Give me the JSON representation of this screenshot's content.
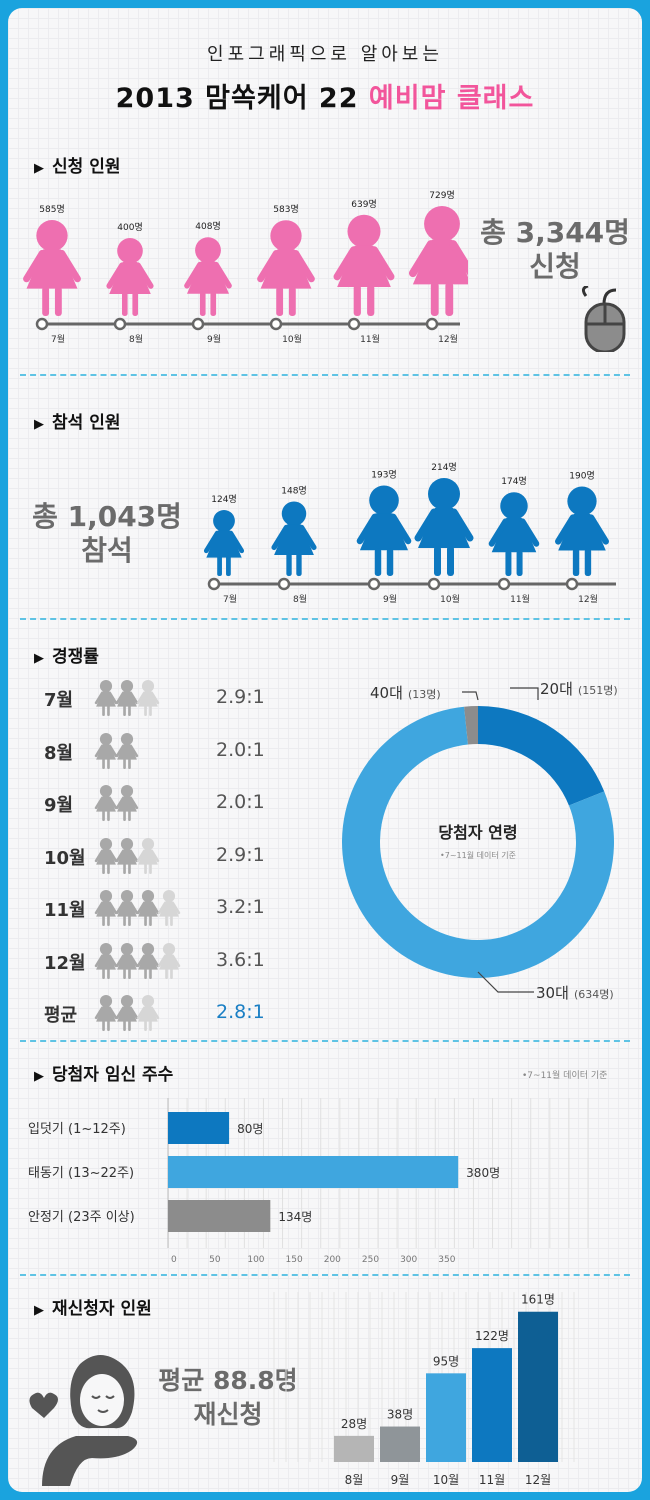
{
  "header": {
    "subtitle": "인포그래픽으로 알아보는",
    "title_main": "2013 맘쏙케어 22",
    "title_accent": "예비맘 클래스"
  },
  "applicants": {
    "title": "신청 인원",
    "total": "총 3,344명",
    "total_suffix": "신청",
    "color": "#ee6fb0",
    "months": [
      "7월",
      "8월",
      "9월",
      "10월",
      "11월",
      "12월"
    ],
    "values": [
      585,
      400,
      408,
      583,
      639,
      729
    ],
    "value_labels": [
      "585명",
      "400명",
      "408명",
      "583명",
      "639명",
      "729명"
    ]
  },
  "attendees": {
    "title": "참석 인원",
    "total": "총 1,043명",
    "total_suffix": "참석",
    "color": "#0d78c0",
    "months": [
      "7월",
      "8월",
      "9월",
      "10월",
      "11월",
      "12월"
    ],
    "values": [
      124,
      148,
      193,
      214,
      174,
      190
    ],
    "value_labels": [
      "124명",
      "148명",
      "193명",
      "214명",
      "174명",
      "190명"
    ]
  },
  "competition": {
    "title": "경쟁률",
    "rows": [
      {
        "label": "7월",
        "ratio": "2.9:1",
        "value": 2.9
      },
      {
        "label": "8월",
        "ratio": "2.0:1",
        "value": 2.0
      },
      {
        "label": "9월",
        "ratio": "2.0:1",
        "value": 2.0
      },
      {
        "label": "10월",
        "ratio": "2.9:1",
        "value": 2.9
      },
      {
        "label": "11월",
        "ratio": "3.2:1",
        "value": 3.2
      },
      {
        "label": "12월",
        "ratio": "3.6:1",
        "value": 3.6
      },
      {
        "label": "평균",
        "ratio": "2.8:1",
        "value": 2.8
      }
    ],
    "average_color": "#1a7fc4"
  },
  "age_donut": {
    "center_title": "당첨자 연령",
    "center_note": "•7~11월 데이터 기준",
    "labels": [
      {
        "name": "20대",
        "count": "(151명)"
      },
      {
        "name": "30대",
        "count": "(634명)"
      },
      {
        "name": "40대",
        "count": "(13명)"
      }
    ]
  },
  "pregnancy": {
    "title": "당첨자 임신 주수",
    "note": "•7~11월 데이터 기준",
    "categories": [
      "입덧기 (1~12주)",
      "태동기 (13~22주)",
      "안정기 (23주 이상)"
    ],
    "value_labels": [
      "80명",
      "380명",
      "134명"
    ],
    "axis_ticks": [
      "0",
      "50",
      "100",
      "150",
      "200",
      "250",
      "300",
      "350"
    ]
  },
  "reapply": {
    "title": "재신청자 인원",
    "average": "평균 88.8명",
    "average_suffix": "재신청",
    "months": [
      "8월",
      "9월",
      "10월",
      "11월",
      "12월"
    ],
    "value_labels": [
      "28명",
      "38명",
      "95명",
      "122명",
      "161명"
    ]
  },
  "chart_data": [
    {
      "type": "bar",
      "title": "신청 인원",
      "categories": [
        "7월",
        "8월",
        "9월",
        "10월",
        "11월",
        "12월"
      ],
      "values": [
        585,
        400,
        408,
        583,
        639,
        729
      ]
    },
    {
      "type": "bar",
      "title": "참석 인원",
      "categories": [
        "7월",
        "8월",
        "9월",
        "10월",
        "11월",
        "12월"
      ],
      "values": [
        124,
        148,
        193,
        214,
        174,
        190
      ]
    },
    {
      "type": "table",
      "title": "경쟁률",
      "categories": [
        "7월",
        "8월",
        "9월",
        "10월",
        "11월",
        "12월",
        "평균"
      ],
      "values": [
        2.9,
        2.0,
        2.0,
        2.9,
        3.2,
        3.6,
        2.8
      ]
    },
    {
      "type": "pie",
      "title": "당첨자 연령",
      "categories": [
        "20대",
        "30대",
        "40대"
      ],
      "values": [
        151,
        634,
        13
      ],
      "colors": [
        "#0d78c0",
        "#3fa6df",
        "#8c8c8c"
      ]
    },
    {
      "type": "bar",
      "title": "당첨자 임신 주수",
      "orientation": "horizontal",
      "categories": [
        "입덧기 (1~12주)",
        "태동기 (13~22주)",
        "안정기 (23주 이상)"
      ],
      "values": [
        80,
        380,
        134
      ],
      "xlim": [
        0,
        550
      ],
      "colors": [
        "#0d78c0",
        "#3fa6df",
        "#8c8c8c"
      ]
    },
    {
      "type": "bar",
      "title": "재신청자 인원",
      "categories": [
        "8월",
        "9월",
        "10월",
        "11월",
        "12월"
      ],
      "values": [
        28,
        38,
        95,
        122,
        161
      ],
      "colors": [
        "#b5b5b5",
        "#8f9599",
        "#3fa6df",
        "#0d78c0",
        "#0e5f94"
      ]
    }
  ]
}
